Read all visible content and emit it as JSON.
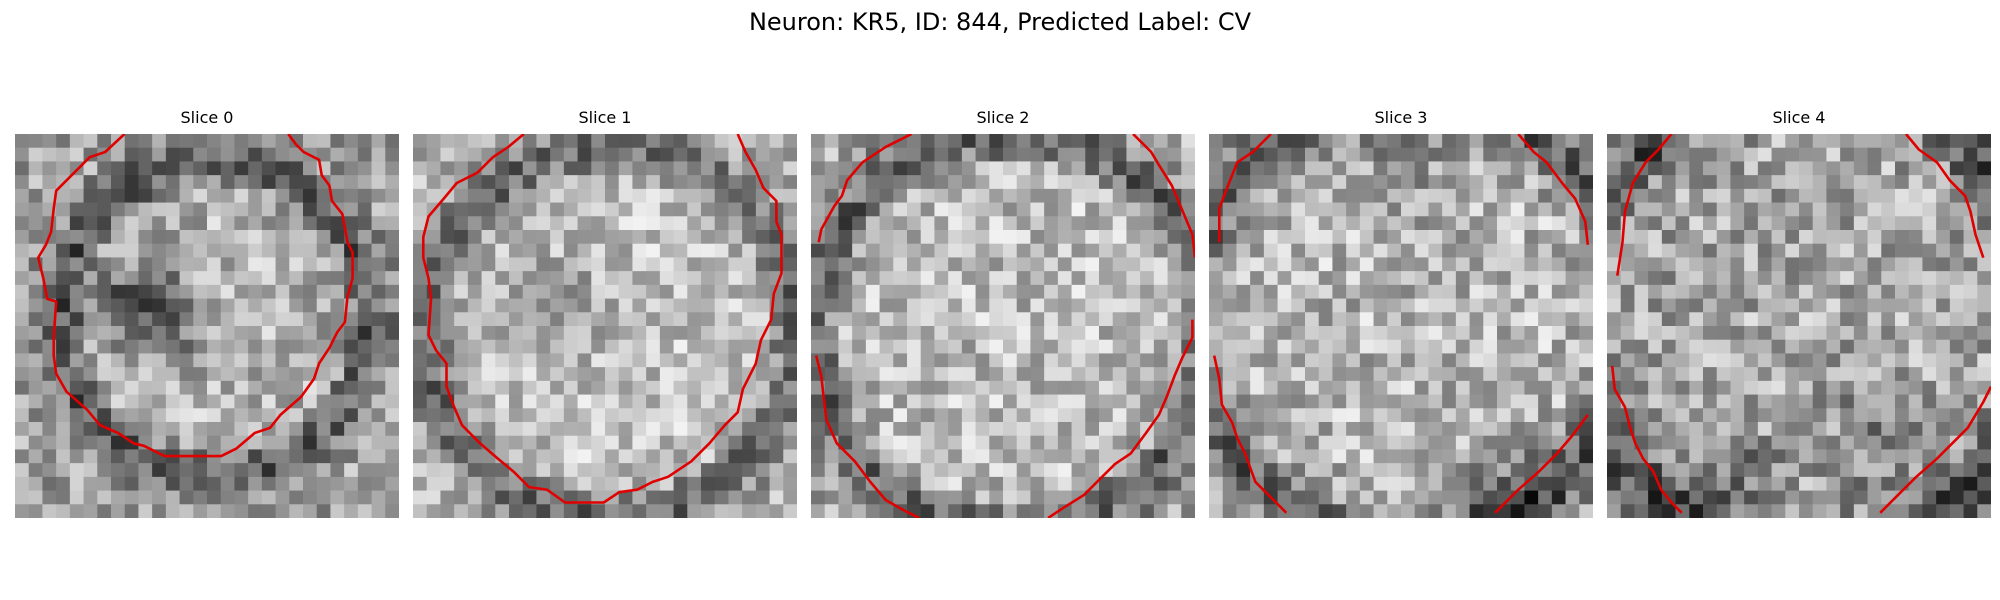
{
  "figure": {
    "title": "Neuron: KR5, ID: 844, Predicted Label: CV",
    "grid_size": 28,
    "contour_color": "#e00000"
  },
  "panels": [
    {
      "title": "Slice 0",
      "noise_seed": 11,
      "base": 160,
      "noise": 55
    },
    {
      "title": "Slice 1",
      "noise_seed": 23,
      "base": 175,
      "noise": 50
    },
    {
      "title": "Slice 2",
      "noise_seed": 37,
      "base": 170,
      "noise": 55
    },
    {
      "title": "Slice 3",
      "noise_seed": 53,
      "base": 165,
      "noise": 58
    },
    {
      "title": "Slice 4",
      "noise_seed": 71,
      "base": 150,
      "noise": 60
    }
  ]
}
